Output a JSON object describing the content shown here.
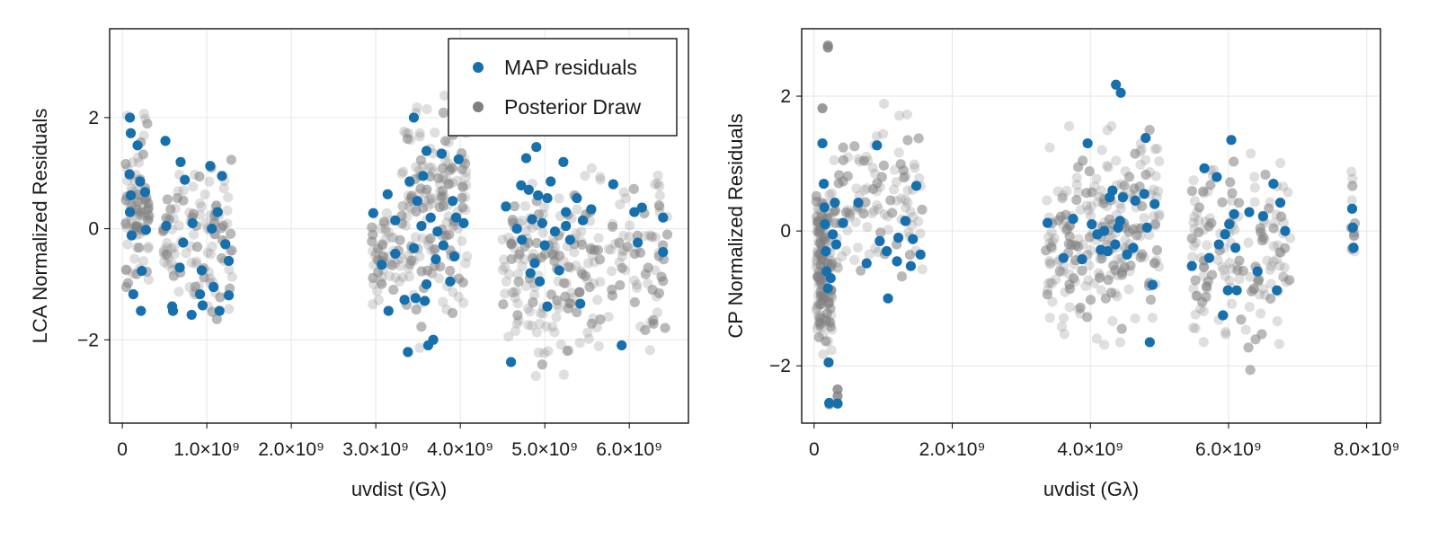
{
  "figure": {
    "colors": {
      "map": "#1670ad",
      "draw": "#7f7f7f",
      "grid": "#e6e6e6",
      "frame": "#000000"
    }
  },
  "chart_data": [
    {
      "type": "scatter",
      "xlabel": "uvdist (Gλ)",
      "ylabel": "LCA Normalized Residuals",
      "xlim": [
        -150000000,
        6700000000
      ],
      "ylim": [
        -3.5,
        3.6
      ],
      "x_ticks": [
        0,
        1000000000,
        2000000000,
        3000000000,
        4000000000,
        5000000000,
        6000000000
      ],
      "x_tick_labels": [
        "0",
        "1.0×10⁹",
        "2.0×10⁹",
        "3.0×10⁹",
        "4.0×10⁹",
        "5.0×10⁹",
        "6.0×10⁹"
      ],
      "y_ticks": [
        -2,
        0,
        2
      ],
      "y_tick_labels": [
        "−2",
        "0",
        "2"
      ],
      "grid": true,
      "legend": {
        "placement": "top-right",
        "entries": [
          "MAP residuals",
          "Posterior Draw"
        ]
      },
      "series": [
        {
          "name": "MAP residuals",
          "points": [
            [
              90000000,
              2.0
            ],
            [
              100000000,
              1.72
            ],
            [
              85000000,
              0.98
            ],
            [
              100000000,
              0.6
            ],
            [
              90000000,
              0.3
            ],
            [
              110000000,
              -0.12
            ],
            [
              130000000,
              -1.18
            ],
            [
              180000000,
              1.5
            ],
            [
              210000000,
              0.85
            ],
            [
              230000000,
              -0.76
            ],
            [
              220000000,
              -1.48
            ],
            [
              270000000,
              0.66
            ],
            [
              280000000,
              -0.02
            ],
            [
              510000000,
              1.58
            ],
            [
              520000000,
              0.05
            ],
            [
              590000000,
              -1.4
            ],
            [
              600000000,
              -1.48
            ],
            [
              690000000,
              1.2
            ],
            [
              680000000,
              -0.7
            ],
            [
              720000000,
              -0.25
            ],
            [
              740000000,
              0.88
            ],
            [
              830000000,
              0.1
            ],
            [
              820000000,
              -1.55
            ],
            [
              940000000,
              -0.75
            ],
            [
              920000000,
              -1.18
            ],
            [
              950000000,
              -1.38
            ],
            [
              1040000000,
              1.13
            ],
            [
              1060000000,
              0.0
            ],
            [
              1080000000,
              -1.05
            ],
            [
              1130000000,
              0.3
            ],
            [
              1150000000,
              -1.48
            ],
            [
              1180000000,
              0.95
            ],
            [
              1220000000,
              -0.28
            ],
            [
              1260000000,
              -0.58
            ],
            [
              1260000000,
              -1.2
            ],
            [
              2970000000,
              0.28
            ],
            [
              3070000000,
              -0.65
            ],
            [
              3140000000,
              0.62
            ],
            [
              3150000000,
              -1.48
            ],
            [
              3230000000,
              -0.45
            ],
            [
              3230000000,
              0.15
            ],
            [
              3340000000,
              -1.28
            ],
            [
              3380000000,
              -2.22
            ],
            [
              3400000000,
              0.85
            ],
            [
              3450000000,
              2.0
            ],
            [
              3450000000,
              -0.35
            ],
            [
              3470000000,
              -1.25
            ],
            [
              3490000000,
              0.5
            ],
            [
              3540000000,
              0.05
            ],
            [
              3560000000,
              0.95
            ],
            [
              3580000000,
              -1.3
            ],
            [
              3600000000,
              -1.0
            ],
            [
              3600000000,
              1.4
            ],
            [
              3650000000,
              0.2
            ],
            [
              3620000000,
              -2.1
            ],
            [
              3680000000,
              -2.0
            ],
            [
              3710000000,
              -0.55
            ],
            [
              3730000000,
              -0.05
            ],
            [
              3780000000,
              1.35
            ],
            [
              3800000000,
              -0.3
            ],
            [
              3880000000,
              -0.95
            ],
            [
              3910000000,
              0.5
            ],
            [
              3930000000,
              -0.5
            ],
            [
              3950000000,
              0.2
            ],
            [
              3980000000,
              1.25
            ],
            [
              4040000000,
              0.1
            ],
            [
              4540000000,
              0.4
            ],
            [
              4600000000,
              -2.4
            ],
            [
              4670000000,
              0.0
            ],
            [
              4720000000,
              0.78
            ],
            [
              4730000000,
              -0.2
            ],
            [
              4780000000,
              1.27
            ],
            [
              4810000000,
              0.7
            ],
            [
              4830000000,
              -0.8
            ],
            [
              4850000000,
              0.17
            ],
            [
              4880000000,
              -0.62
            ],
            [
              4900000000,
              1.47
            ],
            [
              4920000000,
              0.6
            ],
            [
              4940000000,
              -0.95
            ],
            [
              4970000000,
              0.1
            ],
            [
              5000000000,
              -0.3
            ],
            [
              5030000000,
              0.55
            ],
            [
              5030000000,
              -1.4
            ],
            [
              5070000000,
              0.85
            ],
            [
              5120000000,
              -0.05
            ],
            [
              5170000000,
              -0.75
            ],
            [
              5220000000,
              1.2
            ],
            [
              5250000000,
              0.3
            ],
            [
              5250000000,
              0.05
            ],
            [
              5300000000,
              -0.2
            ],
            [
              5380000000,
              0.55
            ],
            [
              5420000000,
              -1.35
            ],
            [
              5450000000,
              0.15
            ],
            [
              5550000000,
              0.35
            ],
            [
              5810000000,
              0.8
            ],
            [
              5910000000,
              -2.1
            ],
            [
              6060000000,
              0.3
            ],
            [
              6100000000,
              -0.25
            ],
            [
              6150000000,
              0.38
            ],
            [
              6400000000,
              0.2
            ],
            [
              6400000000,
              -0.42
            ]
          ]
        },
        {
          "name": "Posterior Draw",
          "clusters": [
            {
              "x": [
                40000000,
                320000000
              ],
              "y": [
                -1.7,
                2.25
              ],
              "n": 90
            },
            {
              "x": [
                480000000,
                1300000000
              ],
              "y": [
                -2.1,
                1.7
              ],
              "n": 110
            },
            {
              "x": [
                2950000000,
                3300000000
              ],
              "y": [
                -1.8,
                1.0
              ],
              "n": 50
            },
            {
              "x": [
                3300000000,
                4100000000
              ],
              "y": [
                -2.6,
                3.3
              ],
              "n": 170
            },
            {
              "x": [
                4500000000,
                5700000000
              ],
              "y": [
                -3.2,
                1.7
              ],
              "n": 170
            },
            {
              "x": [
                5750000000,
                6450000000
              ],
              "y": [
                -2.9,
                1.7
              ],
              "n": 70
            }
          ]
        }
      ]
    },
    {
      "type": "scatter",
      "xlabel": "uvdist (Gλ)",
      "ylabel": "CP Normalized Residuals",
      "xlim": [
        -180000000,
        8200000000
      ],
      "ylim": [
        -2.85,
        3.0
      ],
      "x_ticks": [
        0,
        2000000000,
        4000000000,
        6000000000,
        8000000000
      ],
      "x_tick_labels": [
        "0",
        "2.0×10⁹",
        "4.0×10⁹",
        "6.0×10⁹",
        "8.0×10⁹"
      ],
      "y_ticks": [
        -2,
        0,
        2
      ],
      "y_tick_labels": [
        "−2",
        "0",
        "2"
      ],
      "grid": true,
      "series": [
        {
          "name": "MAP residuals",
          "points": [
            [
              120000000,
              1.3
            ],
            [
              140000000,
              0.7
            ],
            [
              150000000,
              0.35
            ],
            [
              160000000,
              0.1
            ],
            [
              170000000,
              -0.3
            ],
            [
              180000000,
              -0.6
            ],
            [
              200000000,
              -0.85
            ],
            [
              210000000,
              -1.95
            ],
            [
              220000000,
              -2.55
            ],
            [
              240000000,
              -0.7
            ],
            [
              270000000,
              -0.05
            ],
            [
              300000000,
              0.42
            ],
            [
              320000000,
              -0.2
            ],
            [
              340000000,
              -2.56
            ],
            [
              420000000,
              0.12
            ],
            [
              640000000,
              0.42
            ],
            [
              760000000,
              -0.48
            ],
            [
              910000000,
              1.27
            ],
            [
              950000000,
              -0.15
            ],
            [
              1050000000,
              -0.3
            ],
            [
              1070000000,
              -1.0
            ],
            [
              1200000000,
              -0.45
            ],
            [
              1220000000,
              -0.1
            ],
            [
              1320000000,
              0.15
            ],
            [
              1400000000,
              -0.52
            ],
            [
              1430000000,
              -0.12
            ],
            [
              1480000000,
              0.67
            ],
            [
              1540000000,
              -0.35
            ],
            [
              3380000000,
              0.12
            ],
            [
              3610000000,
              -0.4
            ],
            [
              3750000000,
              0.18
            ],
            [
              3880000000,
              -0.42
            ],
            [
              3960000000,
              1.3
            ],
            [
              4020000000,
              0.1
            ],
            [
              4100000000,
              -0.05
            ],
            [
              4150000000,
              -0.28
            ],
            [
              4200000000,
              0.0
            ],
            [
              4250000000,
              -0.3
            ],
            [
              4280000000,
              0.5
            ],
            [
              4320000000,
              0.6
            ],
            [
              4360000000,
              -0.2
            ],
            [
              4370000000,
              2.17
            ],
            [
              4400000000,
              0.05
            ],
            [
              4430000000,
              0.15
            ],
            [
              4440000000,
              2.05
            ],
            [
              4470000000,
              0.5
            ],
            [
              4530000000,
              -0.35
            ],
            [
              4620000000,
              -0.25
            ],
            [
              4650000000,
              0.45
            ],
            [
              4780000000,
              0.55
            ],
            [
              4800000000,
              1.38
            ],
            [
              4820000000,
              0.05
            ],
            [
              4860000000,
              -1.65
            ],
            [
              4900000000,
              -0.8
            ],
            [
              4930000000,
              0.4
            ],
            [
              5470000000,
              -0.52
            ],
            [
              5650000000,
              0.93
            ],
            [
              5720000000,
              -0.4
            ],
            [
              5830000000,
              0.8
            ],
            [
              5860000000,
              -0.2
            ],
            [
              5920000000,
              -1.25
            ],
            [
              5950000000,
              -0.05
            ],
            [
              5990000000,
              -0.88
            ],
            [
              6010000000,
              0.1
            ],
            [
              6040000000,
              1.35
            ],
            [
              6080000000,
              0.25
            ],
            [
              6100000000,
              -0.25
            ],
            [
              6120000000,
              -0.88
            ],
            [
              6300000000,
              0.28
            ],
            [
              6420000000,
              -0.6
            ],
            [
              6500000000,
              0.22
            ],
            [
              6650000000,
              0.7
            ],
            [
              6700000000,
              -0.88
            ],
            [
              6750000000,
              0.42
            ],
            [
              6820000000,
              0.0
            ],
            [
              7790000000,
              0.33
            ],
            [
              7800000000,
              0.05
            ],
            [
              7810000000,
              -0.25
            ]
          ]
        },
        {
          "name": "Posterior Draw",
          "clusters": [
            {
              "x": [
                30000000,
                260000000
              ],
              "y": [
                -2.2,
                1.2
              ],
              "n": 150
            },
            {
              "x": [
                260000000,
                1600000000
              ],
              "y": [
                -1.5,
                2.2
              ],
              "n": 110
            },
            {
              "x": [
                3350000000,
                5000000000
              ],
              "y": [
                -2.05,
                1.95
              ],
              "n": 230
            },
            {
              "x": [
                5450000000,
                6900000000
              ],
              "y": [
                -2.3,
                1.55
              ],
              "n": 150
            },
            {
              "x": [
                7770000000,
                7830000000
              ],
              "y": [
                -1.1,
                1.55
              ],
              "n": 14
            }
          ],
          "highlights": [
            [
              200000000,
              2.75
            ],
            [
              200000000,
              2.72
            ],
            [
              340000000,
              -2.35
            ],
            [
              340000000,
              -2.45
            ],
            [
              220000000,
              -2.57
            ],
            [
              120000000,
              1.82
            ]
          ]
        }
      ]
    }
  ]
}
